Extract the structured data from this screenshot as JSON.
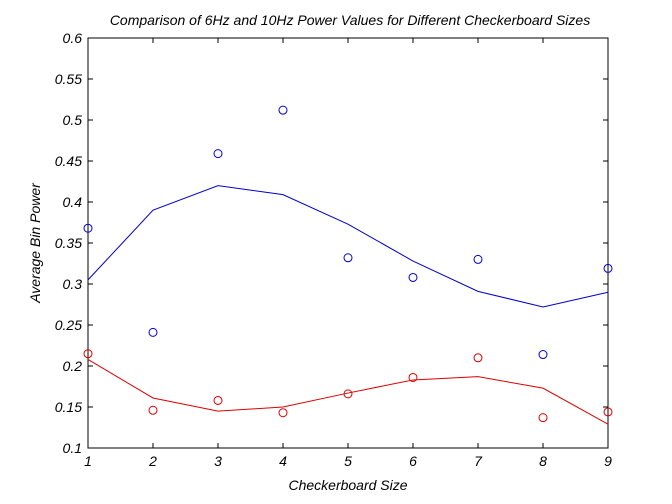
{
  "chart_data": {
    "type": "scatter",
    "title": "Comparison of 6Hz and 10Hz Power Values for Different Checkerboard Sizes",
    "xlabel": "Checkerboard Size",
    "ylabel": "Average Bin Power",
    "xlim": [
      1,
      9
    ],
    "ylim": [
      0.1,
      0.6
    ],
    "x_ticks": [
      "1",
      "2",
      "3",
      "4",
      "5",
      "6",
      "7",
      "8",
      "9"
    ],
    "y_ticks": [
      "0.1",
      "0.15",
      "0.2",
      "0.25",
      "0.3",
      "0.35",
      "0.4",
      "0.45",
      "0.5",
      "0.55",
      "0.6"
    ],
    "grid": false,
    "series": [
      {
        "color": "#0000cc",
        "points_x": [
          1,
          2,
          3,
          4,
          5,
          6,
          7,
          8,
          9
        ],
        "points_y": [
          0.368,
          0.241,
          0.459,
          0.512,
          0.332,
          0.308,
          0.33,
          0.214,
          0.319
        ],
        "fit_x": [
          1,
          2,
          3,
          4,
          5,
          6,
          7,
          8,
          9
        ],
        "fit_y": [
          0.305,
          0.39,
          0.42,
          0.409,
          0.373,
          0.328,
          0.291,
          0.272,
          0.29
        ]
      },
      {
        "color": "#dd0000",
        "points_x": [
          1,
          2,
          3,
          4,
          5,
          6,
          7,
          8,
          9
        ],
        "points_y": [
          0.215,
          0.146,
          0.158,
          0.143,
          0.166,
          0.186,
          0.21,
          0.137,
          0.144
        ],
        "fit_x": [
          1,
          2,
          3,
          4,
          5,
          6,
          7,
          8,
          9
        ],
        "fit_y": [
          0.208,
          0.161,
          0.145,
          0.15,
          0.167,
          0.183,
          0.187,
          0.173,
          0.129
        ]
      }
    ]
  }
}
